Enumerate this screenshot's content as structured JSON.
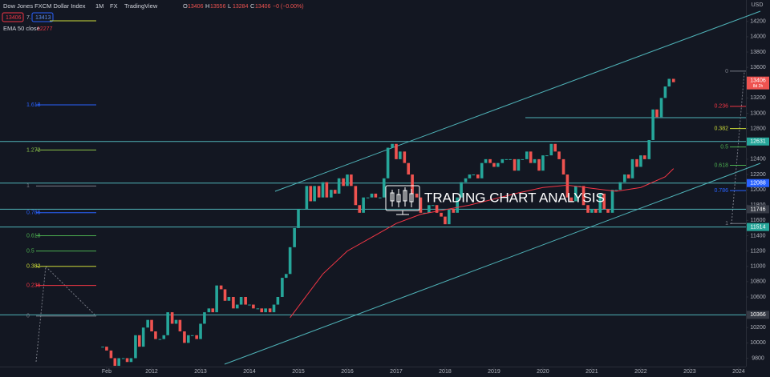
{
  "chart_data": {
    "type": "candlestick",
    "title": "Dow Jones FXCM Dollar Index",
    "interval": "1M",
    "exchange": "FX",
    "source": "TradingView",
    "ohlc": [
      {
        "label": "O",
        "value": 13406
      },
      {
        "label": "H",
        "value": 13556
      },
      {
        "label": "L",
        "value": 13284
      },
      {
        "label": "C",
        "value": 13406
      }
    ],
    "change": "−0 (−0.00%)",
    "quote": {
      "sell": 13406,
      "spread": "7.",
      "buy": 13413
    },
    "currency": "USD",
    "watermark": "TRADING CHART ANALYSIS",
    "last_price_tag": {
      "value": 13406,
      "countdown": "8d 2h"
    },
    "xlim": [
      2008.9,
      2024.15
    ],
    "xticks": [
      {
        "value": 2011.08,
        "label": "Feb"
      },
      2012,
      2013,
      2014,
      2015,
      2016,
      2017,
      2018,
      2019,
      2020,
      2021,
      2022,
      2023,
      2024
    ],
    "ylim": [
      9690,
      14480
    ],
    "yticks": [
      9800,
      10000,
      10200,
      10600,
      10800,
      11000,
      11200,
      11400,
      11600,
      11800,
      12000,
      12200,
      12400,
      12800,
      13000,
      13200,
      13600,
      13800,
      14000,
      14200
    ],
    "series": [
      {
        "color_up": "#26a69a",
        "color_down": "#ef5350",
        "x": [
          2011,
          2011.08,
          2011.17,
          2011.25,
          2011.33,
          2011.42,
          2011.5,
          2011.58,
          2011.67,
          2011.75,
          2011.83,
          2011.92,
          2012,
          2012.08,
          2012.17,
          2012.25,
          2012.33,
          2012.42,
          2012.5,
          2012.58,
          2012.67,
          2012.75,
          2012.83,
          2012.92,
          2013,
          2013.08,
          2013.17,
          2013.25,
          2013.33,
          2013.42,
          2013.5,
          2013.58,
          2013.67,
          2013.75,
          2013.83,
          2013.92,
          2014,
          2014.08,
          2014.17,
          2014.25,
          2014.33,
          2014.42,
          2014.5,
          2014.58,
          2014.67,
          2014.75,
          2014.83,
          2014.92,
          2015,
          2015.08,
          2015.17,
          2015.25,
          2015.33,
          2015.42,
          2015.5,
          2015.58,
          2015.67,
          2015.75,
          2015.83,
          2015.92,
          2016,
          2016.08,
          2016.17,
          2016.25,
          2016.33,
          2016.42,
          2016.5,
          2016.58,
          2016.67,
          2016.75,
          2016.83,
          2016.92,
          2017,
          2017.08,
          2017.17,
          2017.25,
          2017.33,
          2017.42,
          2017.5,
          2017.58,
          2017.67,
          2017.75,
          2017.83,
          2017.92,
          2018,
          2018.08,
          2018.17,
          2018.25,
          2018.33,
          2018.42,
          2018.5,
          2018.58,
          2018.67,
          2018.75,
          2018.83,
          2018.92,
          2019,
          2019.08,
          2019.17,
          2019.25,
          2019.33,
          2019.42,
          2019.5,
          2019.58,
          2019.67,
          2019.75,
          2019.83,
          2019.92,
          2020,
          2020.08,
          2020.17,
          2020.25,
          2020.33,
          2020.42,
          2020.5,
          2020.58,
          2020.67,
          2020.75,
          2020.83,
          2020.92,
          2021,
          2021.08,
          2021.17,
          2021.25,
          2021.33,
          2021.42,
          2021.5,
          2021.58,
          2021.67,
          2021.75,
          2021.83,
          2021.92,
          2022,
          2022.08,
          2022.17,
          2022.25,
          2022.33,
          2022.42,
          2022.5,
          2022.58,
          2022.67
        ],
        "values": [
          9950,
          9900,
          9800,
          9700,
          9800,
          9800,
          9750,
          9800,
          10100,
          9950,
          10200,
          10300,
          10150,
          10050,
          10050,
          10100,
          10400,
          10250,
          10300,
          10150,
          10000,
          10100,
          10100,
          10050,
          10250,
          10400,
          10450,
          10400,
          10750,
          10700,
          10550,
          10600,
          10450,
          10500,
          10600,
          10500,
          10500,
          10450,
          10450,
          10400,
          10450,
          10400,
          10500,
          10600,
          10850,
          10900,
          11250,
          11500,
          11750,
          11750,
          12050,
          11850,
          12050,
          11900,
          12100,
          11900,
          12000,
          11950,
          12150,
          12050,
          12200,
          12050,
          11800,
          11700,
          11900,
          11900,
          11950,
          11900,
          11900,
          12150,
          12550,
          12600,
          12400,
          12500,
          12350,
          12200,
          11950,
          11900,
          11700,
          11700,
          11800,
          11800,
          11700,
          11650,
          11550,
          11750,
          11700,
          11900,
          12100,
          12150,
          12200,
          12200,
          12150,
          12350,
          12400,
          12350,
          12300,
          12350,
          12400,
          12400,
          12400,
          12250,
          12400,
          12400,
          12500,
          12350,
          12400,
          12250,
          12450,
          12450,
          12600,
          12500,
          12400,
          12200,
          11900,
          11850,
          12050,
          12050,
          11800,
          11700,
          11750,
          11700,
          11950,
          11750,
          11700,
          12000,
          12000,
          12100,
          12200,
          12150,
          12400,
          12300,
          12450,
          12400,
          12650,
          13050,
          12950,
          13200,
          13350,
          13450,
          13406
        ]
      },
      {
        "name": "EMA 50 close",
        "color": "#f23645",
        "last_value": 12277,
        "x": [
          2014.83,
          2015.5,
          2016,
          2016.5,
          2017,
          2017.5,
          2018,
          2018.5,
          2019,
          2019.5,
          2020,
          2020.5,
          2021,
          2021.5,
          2022,
          2022.5,
          2022.67
        ],
        "values": [
          10330,
          10900,
          11200,
          11380,
          11560,
          11680,
          11740,
          11800,
          11880,
          11960,
          12030,
          12060,
          12020,
          11980,
          12030,
          12170,
          12277
        ]
      }
    ],
    "levels": [
      {
        "value": 12631,
        "color": "#26a69a"
      },
      {
        "value": 12088,
        "color": "#2962ff"
      },
      {
        "value": 11746,
        "color": "#363a45"
      },
      {
        "value": 11514,
        "color": "#26a69a"
      },
      {
        "value": 10366,
        "color": "#363a45"
      }
    ],
    "fib_left": [
      {
        "label": "1.618",
        "price": 13110,
        "color": "#2962ff"
      },
      {
        "label": "1.272",
        "price": 12520,
        "color": "#8bc34a"
      },
      {
        "label": "1",
        "price": 12050,
        "color": "#787b86"
      },
      {
        "label": "0.786",
        "price": 11700,
        "color": "#2962ff"
      },
      {
        "label": "0.618",
        "price": 11400,
        "color": "#4caf50"
      },
      {
        "label": "0.5",
        "price": 11200,
        "color": "#4caf50"
      },
      {
        "label": "0.382",
        "price": 11000,
        "color": "#cddc39"
      },
      {
        "label": "0.236",
        "price": 10750,
        "color": "#f23645"
      },
      {
        "label": "0",
        "price": 10350,
        "color": "#787b86"
      }
    ],
    "fib_right": [
      {
        "label": "0",
        "price": 13550,
        "color": "#787b86"
      },
      {
        "label": "0.236",
        "price": 13090,
        "color": "#f23645"
      },
      {
        "label": "0.382",
        "price": 12800,
        "color": "#cddc39"
      },
      {
        "label": "0.5",
        "price": 12560,
        "color": "#4caf50"
      },
      {
        "label": "0.618",
        "price": 12320,
        "color": "#4caf50"
      },
      {
        "label": "0.786",
        "price": 11990,
        "color": "#2962ff"
      },
      {
        "label": "1",
        "price": 11560,
        "color": "#787b86"
      }
    ]
  }
}
